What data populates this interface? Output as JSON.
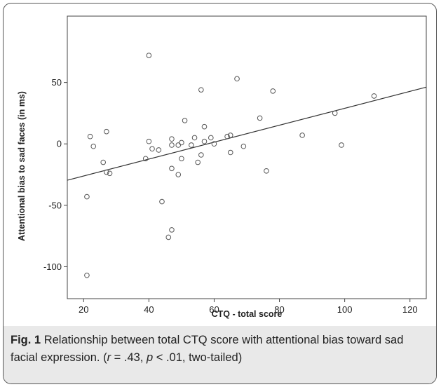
{
  "chart_data": {
    "type": "scatter",
    "x_label": "CTQ - total score",
    "y_label": "Attentional bias to sad faces (in ms)",
    "x": [
      21,
      21,
      22,
      23,
      26,
      27,
      27,
      28,
      39,
      40,
      40,
      41,
      43,
      44,
      46,
      47,
      47,
      47,
      47,
      49,
      49,
      50,
      50,
      51,
      53,
      54,
      55,
      56,
      56,
      57,
      57,
      59,
      60,
      64,
      65,
      65,
      67,
      69,
      74,
      76,
      78,
      87,
      97,
      99,
      109
    ],
    "values": [
      -107,
      -43,
      6,
      -2,
      -15,
      10,
      -23,
      -24,
      -12,
      72,
      2,
      -4,
      -5,
      -47,
      -76,
      -70,
      4,
      -1,
      -20,
      -1,
      -25,
      1,
      -12,
      19,
      -1,
      5,
      -15,
      44,
      -9,
      14,
      2,
      5,
      0,
      6,
      7,
      -7,
      53,
      -2,
      21,
      -22,
      43,
      7,
      25,
      -1,
      39
    ],
    "fit_line": {
      "x": [
        15,
        125
      ],
      "values": [
        -29.6,
        46.2
      ]
    },
    "color": "#555555",
    "xlim": [
      15,
      125
    ],
    "xticks": [
      20,
      40,
      60,
      80,
      100,
      120
    ],
    "ylim": [
      -126,
      104
    ],
    "yticks": [
      -100,
      -50,
      0,
      50
    ]
  },
  "caption": {
    "label": "Fig. 1",
    "parts": [
      "Relationship between total CTQ score with attentional bias toward sad facial expression. (",
      "r",
      " = .43, ",
      "p",
      " < .01, two-tailed)"
    ]
  }
}
